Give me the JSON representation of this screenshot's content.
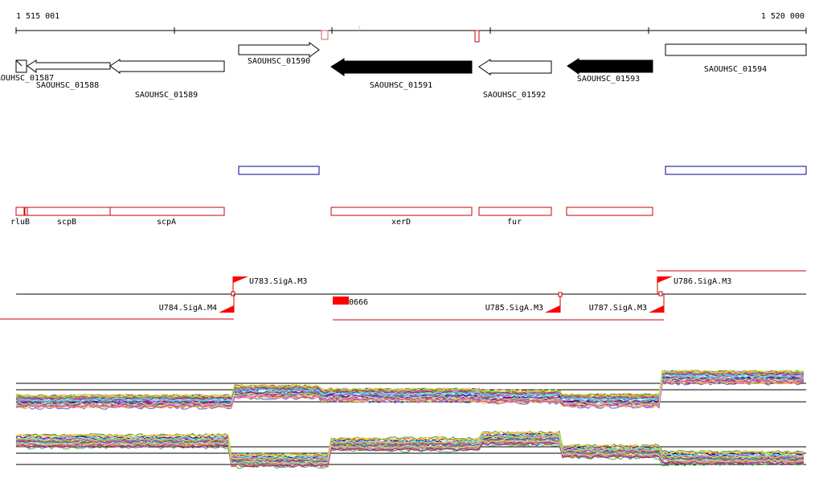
{
  "coordinates": {
    "start_label": "1 515 001",
    "end_label": "1 520 000"
  },
  "genes_top": [
    {
      "name": "SAOUHSC_01587",
      "strand": "+",
      "fill": "white"
    },
    {
      "name": "SAOUHSC_01588",
      "strand": "-",
      "fill": "white"
    },
    {
      "name": "SAOUHSC_01589",
      "strand": "-",
      "fill": "white"
    },
    {
      "name": "SAOUHSC_01590",
      "strand": "+",
      "fill": "white"
    },
    {
      "name": "SAOUHSC_01591",
      "strand": "-",
      "fill": "black"
    },
    {
      "name": "SAOUHSC_01592",
      "strand": "-",
      "fill": "white"
    },
    {
      "name": "SAOUHSC_01593",
      "strand": "-",
      "fill": "black"
    },
    {
      "name": "SAOUHSC_01594",
      "strand": "+",
      "fill": "white"
    }
  ],
  "common_names": [
    {
      "name": "rluB"
    },
    {
      "name": "scpB"
    },
    {
      "name": "scpA"
    },
    {
      "name": "xerD"
    },
    {
      "name": "fur"
    },
    {
      "name": ""
    }
  ],
  "transcripts": [
    {
      "name": "U783.SigA.M3"
    },
    {
      "name": "U784.SigA.M4"
    },
    {
      "name": "0666"
    },
    {
      "name": "U785.SigA.M3"
    },
    {
      "name": "U787.SigA.M3"
    },
    {
      "name": "U786.SigA.M3"
    }
  ],
  "colors": {
    "gene_outline": "#000000",
    "common_name_box": "#cc0000",
    "blue_box": "#000099",
    "transcript_line": "#cc0000",
    "promoter_flag": "#ff0000",
    "baseline": "#000000"
  }
}
